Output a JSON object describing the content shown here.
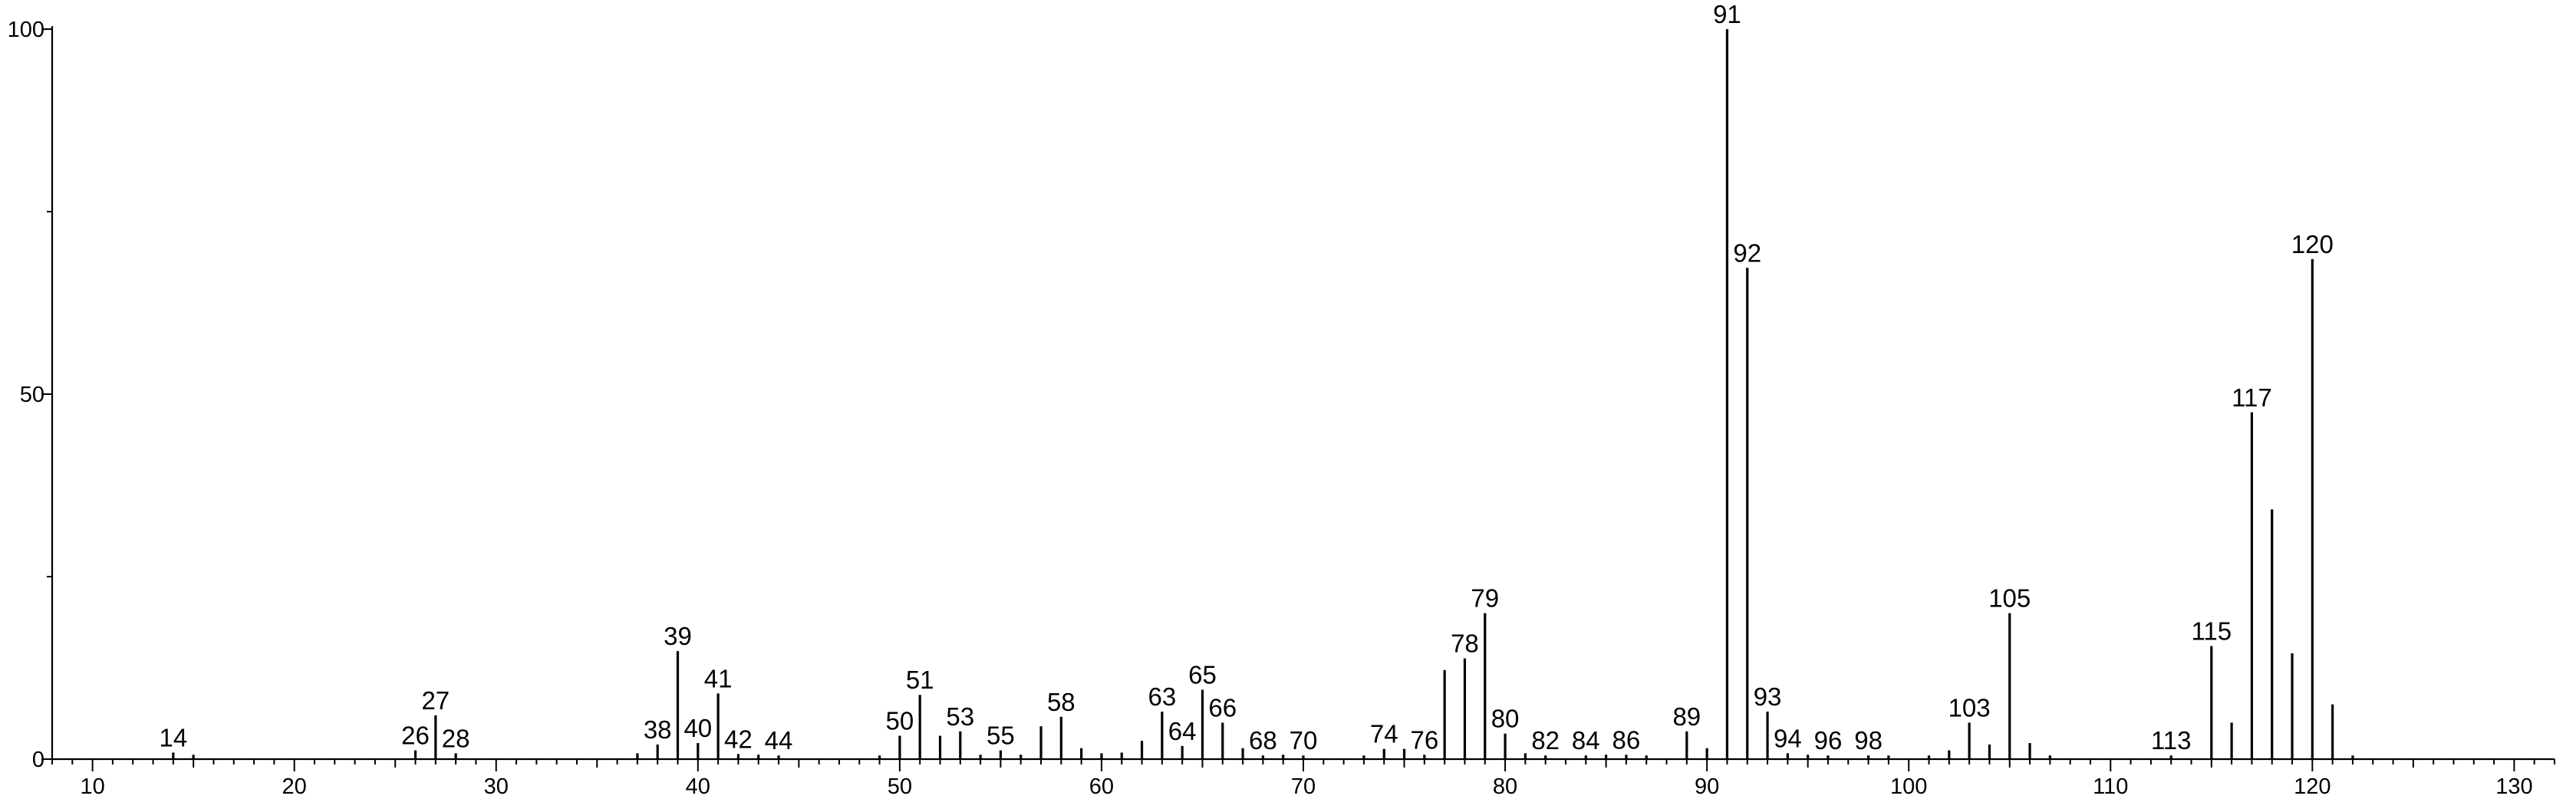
{
  "chart_data": {
    "type": "bar",
    "title": "",
    "xlabel": "",
    "ylabel": "",
    "xlim": [
      8,
      132
    ],
    "ylim": [
      0,
      100
    ],
    "grid": false,
    "legend": "none",
    "x_ticks": [
      10,
      20,
      30,
      40,
      50,
      60,
      70,
      80,
      90,
      100,
      110,
      120,
      130
    ],
    "x_tick_labels": [
      "10",
      "20",
      "30",
      "40",
      "50",
      "60",
      "70",
      "80",
      "90",
      "100",
      "110",
      "120",
      "130"
    ],
    "y_ticks": [
      0,
      50,
      100
    ],
    "y_tick_labels": [
      "0",
      "50",
      "100"
    ],
    "series": [
      {
        "peaks": [
          {
            "x": 14,
            "y": 0.9,
            "label": "14"
          },
          {
            "x": 15,
            "y": 0.6,
            "label": ""
          },
          {
            "x": 26,
            "y": 1.2,
            "label": "26"
          },
          {
            "x": 27,
            "y": 6.0,
            "label": "27"
          },
          {
            "x": 28,
            "y": 0.8,
            "label": "28"
          },
          {
            "x": 37,
            "y": 0.8,
            "label": ""
          },
          {
            "x": 38,
            "y": 2.0,
            "label": "38"
          },
          {
            "x": 39,
            "y": 14.8,
            "label": "39"
          },
          {
            "x": 40,
            "y": 2.2,
            "label": "40"
          },
          {
            "x": 41,
            "y": 9.0,
            "label": "41"
          },
          {
            "x": 42,
            "y": 0.7,
            "label": "42"
          },
          {
            "x": 43,
            "y": 0.6,
            "label": ""
          },
          {
            "x": 44,
            "y": 0.5,
            "label": "44"
          },
          {
            "x": 49,
            "y": 0.5,
            "label": ""
          },
          {
            "x": 50,
            "y": 3.2,
            "label": "50"
          },
          {
            "x": 51,
            "y": 8.8,
            "label": "51"
          },
          {
            "x": 52,
            "y": 3.2,
            "label": ""
          },
          {
            "x": 53,
            "y": 3.8,
            "label": "53"
          },
          {
            "x": 54,
            "y": 0.6,
            "label": ""
          },
          {
            "x": 55,
            "y": 1.2,
            "label": "55"
          },
          {
            "x": 56,
            "y": 0.6,
            "label": ""
          },
          {
            "x": 57,
            "y": 4.5,
            "label": ""
          },
          {
            "x": 58,
            "y": 5.8,
            "label": "58"
          },
          {
            "x": 59,
            "y": 1.5,
            "label": ""
          },
          {
            "x": 60,
            "y": 0.8,
            "label": ""
          },
          {
            "x": 61,
            "y": 0.9,
            "label": ""
          },
          {
            "x": 62,
            "y": 2.5,
            "label": ""
          },
          {
            "x": 63,
            "y": 6.5,
            "label": "63"
          },
          {
            "x": 64,
            "y": 1.8,
            "label": "64"
          },
          {
            "x": 65,
            "y": 9.5,
            "label": "65"
          },
          {
            "x": 66,
            "y": 5.0,
            "label": "66"
          },
          {
            "x": 67,
            "y": 1.5,
            "label": ""
          },
          {
            "x": 68,
            "y": 0.5,
            "label": "68"
          },
          {
            "x": 69,
            "y": 0.6,
            "label": ""
          },
          {
            "x": 70,
            "y": 0.5,
            "label": "70"
          },
          {
            "x": 73,
            "y": 0.5,
            "label": ""
          },
          {
            "x": 74,
            "y": 1.4,
            "label": "74"
          },
          {
            "x": 75,
            "y": 1.4,
            "label": ""
          },
          {
            "x": 76,
            "y": 0.6,
            "label": "76"
          },
          {
            "x": 77,
            "y": 12.2,
            "label": ""
          },
          {
            "x": 78,
            "y": 13.8,
            "label": "78"
          },
          {
            "x": 79,
            "y": 20.0,
            "label": "79"
          },
          {
            "x": 80,
            "y": 3.5,
            "label": "80"
          },
          {
            "x": 81,
            "y": 0.8,
            "label": ""
          },
          {
            "x": 82,
            "y": 0.5,
            "label": "82"
          },
          {
            "x": 84,
            "y": 0.5,
            "label": "84"
          },
          {
            "x": 85,
            "y": 0.6,
            "label": ""
          },
          {
            "x": 86,
            "y": 0.6,
            "label": "86"
          },
          {
            "x": 87,
            "y": 0.5,
            "label": ""
          },
          {
            "x": 89,
            "y": 3.8,
            "label": "89"
          },
          {
            "x": 90,
            "y": 1.5,
            "label": ""
          },
          {
            "x": 91,
            "y": 100,
            "label": "91"
          },
          {
            "x": 92,
            "y": 67.3,
            "label": "92"
          },
          {
            "x": 93,
            "y": 6.5,
            "label": "93"
          },
          {
            "x": 94,
            "y": 0.8,
            "label": "94"
          },
          {
            "x": 95,
            "y": 0.6,
            "label": ""
          },
          {
            "x": 96,
            "y": 0.5,
            "label": "96"
          },
          {
            "x": 98,
            "y": 0.5,
            "label": "98"
          },
          {
            "x": 99,
            "y": 0.5,
            "label": ""
          },
          {
            "x": 101,
            "y": 0.5,
            "label": ""
          },
          {
            "x": 102,
            "y": 1.2,
            "label": ""
          },
          {
            "x": 103,
            "y": 5.0,
            "label": "103"
          },
          {
            "x": 104,
            "y": 2.0,
            "label": ""
          },
          {
            "x": 105,
            "y": 20.0,
            "label": "105"
          },
          {
            "x": 106,
            "y": 2.2,
            "label": ""
          },
          {
            "x": 107,
            "y": 0.5,
            "label": ""
          },
          {
            "x": 113,
            "y": 0.5,
            "label": "113"
          },
          {
            "x": 115,
            "y": 15.5,
            "label": "115"
          },
          {
            "x": 116,
            "y": 5.0,
            "label": ""
          },
          {
            "x": 117,
            "y": 47.5,
            "label": "117"
          },
          {
            "x": 118,
            "y": 34.2,
            "label": ""
          },
          {
            "x": 119,
            "y": 14.5,
            "label": ""
          },
          {
            "x": 120,
            "y": 68.5,
            "label": "120"
          },
          {
            "x": 121,
            "y": 7.5,
            "label": ""
          },
          {
            "x": 122,
            "y": 0.5,
            "label": ""
          }
        ]
      }
    ]
  }
}
